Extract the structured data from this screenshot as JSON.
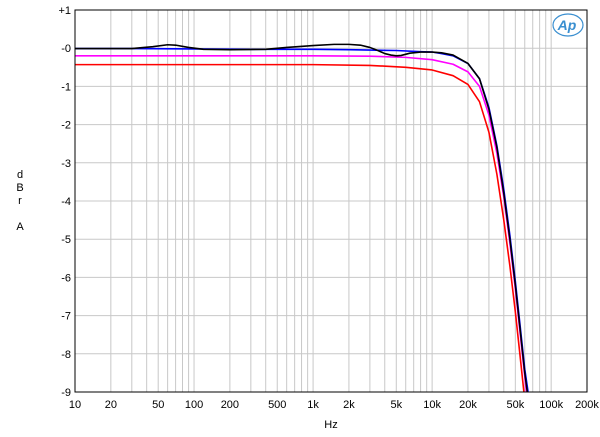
{
  "chart_data": {
    "type": "line",
    "xscale": "log",
    "xlim": [
      10,
      200000
    ],
    "ylim": [
      -9,
      1
    ],
    "grid": true,
    "xlabel": "Hz",
    "ylabel_lines": [
      "d",
      "B",
      "r",
      "",
      "A"
    ],
    "x_tick_values": [
      10,
      20,
      50,
      100,
      200,
      500,
      1000,
      2000,
      5000,
      10000,
      20000,
      50000,
      100000,
      200000
    ],
    "x_tick_labels": [
      "10",
      "20",
      "50",
      "100",
      "200",
      "500",
      "1k",
      "2k",
      "5k",
      "10k",
      "20k",
      "50k",
      "100k",
      "200k"
    ],
    "y_tick_values": [
      1,
      0,
      -1,
      -2,
      -3,
      -4,
      -5,
      -6,
      -7,
      -8,
      -9
    ],
    "y_tick_labels": [
      "+1",
      "-0",
      "-1",
      "-2",
      "-3",
      "-4",
      "-5",
      "-6",
      "-7",
      "-8",
      "-9"
    ],
    "logo_text": "Ap",
    "series": [
      {
        "color": "#000000",
        "points": [
          [
            10,
            -0.01
          ],
          [
            20,
            -0.01
          ],
          [
            30,
            -0.01
          ],
          [
            45,
            0.04
          ],
          [
            60,
            0.09
          ],
          [
            70,
            0.08
          ],
          [
            90,
            0.02
          ],
          [
            120,
            -0.03
          ],
          [
            200,
            -0.04
          ],
          [
            400,
            -0.03
          ],
          [
            600,
            0.02
          ],
          [
            1000,
            0.07
          ],
          [
            1500,
            0.1
          ],
          [
            2000,
            0.1
          ],
          [
            2500,
            0.08
          ],
          [
            3000,
            0.02
          ],
          [
            3500,
            -0.06
          ],
          [
            4000,
            -0.14
          ],
          [
            4500,
            -0.18
          ],
          [
            5000,
            -0.2
          ],
          [
            5500,
            -0.19
          ],
          [
            6500,
            -0.13
          ],
          [
            8000,
            -0.1
          ],
          [
            10000,
            -0.1
          ],
          [
            12000,
            -0.12
          ],
          [
            15000,
            -0.18
          ],
          [
            20000,
            -0.4
          ],
          [
            25000,
            -0.8
          ],
          [
            30000,
            -1.6
          ],
          [
            35000,
            -2.6
          ],
          [
            40000,
            -3.8
          ],
          [
            45000,
            -5.0
          ],
          [
            50000,
            -6.2
          ],
          [
            55000,
            -7.4
          ],
          [
            60000,
            -8.5
          ],
          [
            63000,
            -9.0
          ]
        ]
      },
      {
        "color": "#0000ff",
        "points": [
          [
            10,
            -0.01
          ],
          [
            30,
            -0.01
          ],
          [
            100,
            -0.02
          ],
          [
            300,
            -0.03
          ],
          [
            1000,
            -0.03
          ],
          [
            2000,
            -0.04
          ],
          [
            3000,
            -0.05
          ],
          [
            5000,
            -0.06
          ],
          [
            8000,
            -0.09
          ],
          [
            10000,
            -0.1
          ],
          [
            12000,
            -0.14
          ],
          [
            15000,
            -0.2
          ],
          [
            20000,
            -0.4
          ],
          [
            25000,
            -0.8
          ],
          [
            30000,
            -1.55
          ],
          [
            35000,
            -2.55
          ],
          [
            40000,
            -3.7
          ],
          [
            45000,
            -4.9
          ],
          [
            50000,
            -6.1
          ],
          [
            55000,
            -7.3
          ],
          [
            60000,
            -8.4
          ],
          [
            64000,
            -9.0
          ]
        ]
      },
      {
        "color": "#ff00ff",
        "points": [
          [
            10,
            -0.2
          ],
          [
            100,
            -0.2
          ],
          [
            1000,
            -0.2
          ],
          [
            3000,
            -0.21
          ],
          [
            6000,
            -0.24
          ],
          [
            10000,
            -0.3
          ],
          [
            15000,
            -0.42
          ],
          [
            20000,
            -0.62
          ],
          [
            25000,
            -1.0
          ],
          [
            30000,
            -1.75
          ],
          [
            35000,
            -2.75
          ],
          [
            40000,
            -3.9
          ],
          [
            45000,
            -5.1
          ],
          [
            50000,
            -6.3
          ],
          [
            55000,
            -7.5
          ],
          [
            60000,
            -8.6
          ],
          [
            62000,
            -9.0
          ]
        ]
      },
      {
        "color": "#ff0000",
        "points": [
          [
            10,
            -0.43
          ],
          [
            100,
            -0.43
          ],
          [
            1000,
            -0.43
          ],
          [
            3000,
            -0.45
          ],
          [
            6000,
            -0.5
          ],
          [
            10000,
            -0.57
          ],
          [
            15000,
            -0.72
          ],
          [
            20000,
            -0.95
          ],
          [
            25000,
            -1.4
          ],
          [
            30000,
            -2.2
          ],
          [
            35000,
            -3.3
          ],
          [
            40000,
            -4.5
          ],
          [
            45000,
            -5.7
          ],
          [
            50000,
            -6.9
          ],
          [
            55000,
            -8.1
          ],
          [
            59000,
            -9.0
          ]
        ]
      }
    ]
  }
}
